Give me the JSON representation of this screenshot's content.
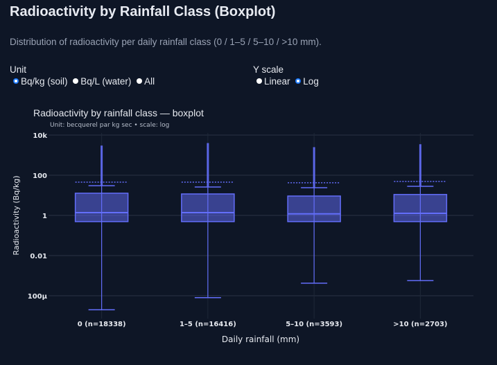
{
  "header": {
    "title": "Radioactivity by Rainfall Class (Boxplot)",
    "subtitle": "Distribution of radioactivity per daily rainfall class (0 / 1–5 / 5–10 / >10 mm)."
  },
  "controls": {
    "unit": {
      "label": "Unit",
      "options": [
        "Bq/kg (soil)",
        "Bq/L (water)",
        "All"
      ],
      "selected": "Bq/kg (soil)"
    },
    "yscale": {
      "label": "Y scale",
      "options": [
        "Linear",
        "Log"
      ],
      "selected": "Log"
    }
  },
  "colors": {
    "background": "#0e1626",
    "box_line": "#636efa",
    "box_fill": "#3a429e",
    "grid": "#2a3344"
  },
  "chart_data": {
    "type": "box",
    "title": "Radioactivity by rainfall class — boxplot",
    "subtitle": "Unit: becquerel par kg sec • scale: log",
    "xlabel": "Daily rainfall (mm)",
    "ylabel": "Radioactivity (Bq/kg)",
    "yscale": "log",
    "ylim": [
      1e-05,
      20000
    ],
    "yticks": [
      {
        "v": 10000,
        "label": "10k"
      },
      {
        "v": 100,
        "label": "100"
      },
      {
        "v": 1,
        "label": "1"
      },
      {
        "v": 0.01,
        "label": "0.01"
      },
      {
        "v": 0.0001,
        "label": "100µ"
      }
    ],
    "grid": true,
    "categories": [
      "0 (n=18338)",
      "1–5 (n=16416)",
      "5–10 (n=3593)",
      ">10 (n=2703)"
    ],
    "boxes": [
      {
        "q1": 0.49,
        "median": 1.37,
        "q3": 12.7,
        "lower_fence": 2e-05,
        "upper_fence": 30,
        "mean": 45,
        "max_outlier": 3000
      },
      {
        "q1": 0.49,
        "median": 1.37,
        "q3": 11.7,
        "lower_fence": 8e-05,
        "upper_fence": 26,
        "mean": 45,
        "max_outlier": 4000
      },
      {
        "q1": 0.49,
        "median": 1.2,
        "q3": 9.2,
        "lower_fence": 0.00042,
        "upper_fence": 24,
        "mean": 42,
        "max_outlier": 2500
      },
      {
        "q1": 0.49,
        "median": 1.27,
        "q3": 11,
        "lower_fence": 0.00057,
        "upper_fence": 28,
        "mean": 49,
        "max_outlier": 3500
      }
    ]
  }
}
